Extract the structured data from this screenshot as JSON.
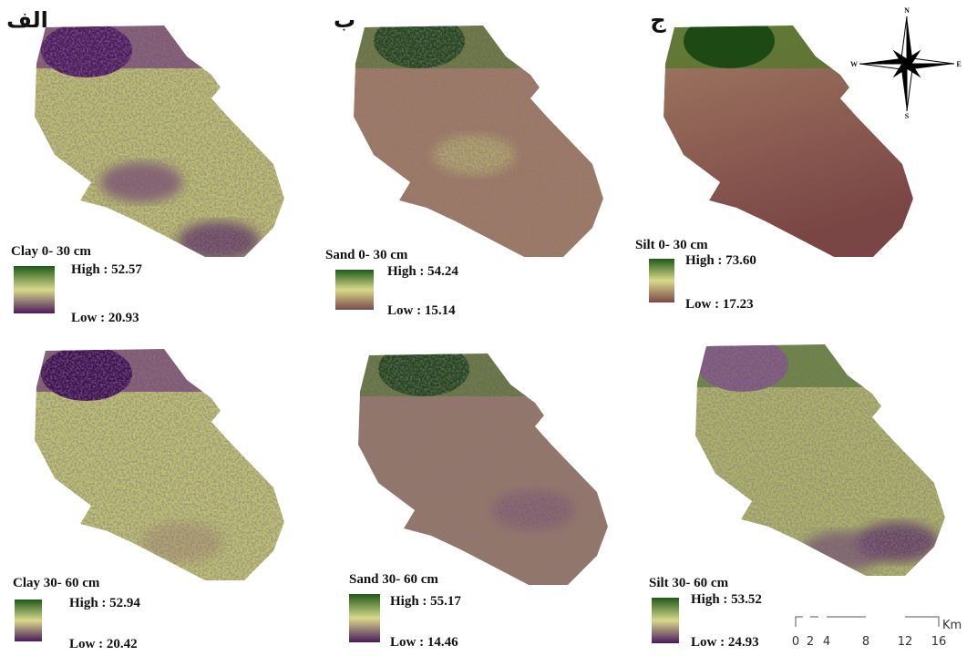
{
  "panel_labels": [
    "الف",
    "ب",
    "ج"
  ],
  "maps": [
    {
      "title": "Clay 0- 30 cm",
      "high": "High : 52.57",
      "low": "Low : 20.93"
    },
    {
      "title": "Sand 0- 30 cm",
      "high": "High : 54.24",
      "low": "Low : 15.14"
    },
    {
      "title": "Silt 0- 30 cm",
      "high": "High : 73.60",
      "low": "Low : 17.23"
    },
    {
      "title": "Clay 30- 60 cm",
      "high": "High : 52.94",
      "low": "Low : 20.42"
    },
    {
      "title": "Sand 30- 60 cm",
      "high": "High : 55.17",
      "low": "Low : 14.46"
    },
    {
      "title": "Silt 30- 60 cm",
      "high": "High : 53.52",
      "low": "Low : 24.93"
    }
  ],
  "compass": {
    "n": "N",
    "e": "E",
    "s": "S",
    "w": "W"
  },
  "scale_bar": {
    "ticks": [
      "0",
      "2",
      "4",
      "8",
      "12",
      "16"
    ],
    "unit": "Km"
  }
}
